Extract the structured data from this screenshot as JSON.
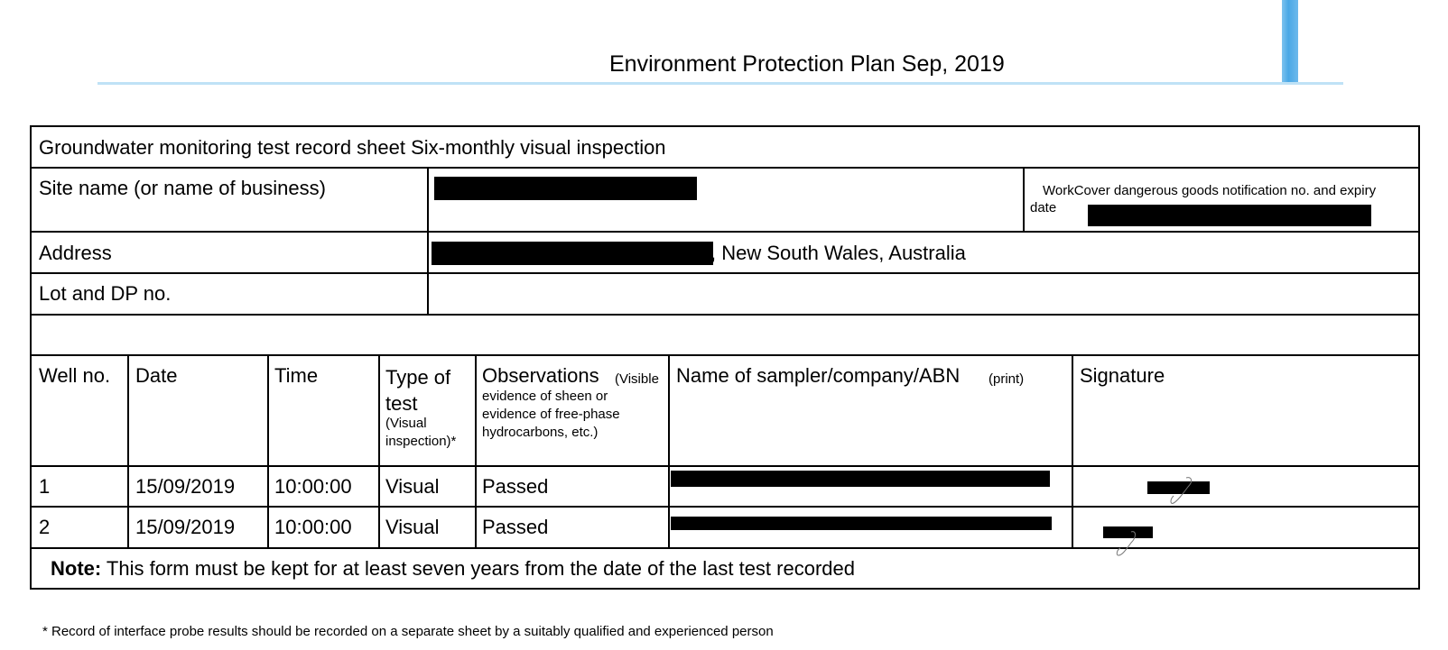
{
  "header": {
    "title": "Environment Protection Plan Sep, 2019"
  },
  "form": {
    "title": "Groundwater monitoring test record sheet Six-monthly visual inspection",
    "site_label": "Site name (or name of business)",
    "workcover_label": "WorkCover dangerous goods notification no. and expiry date",
    "address_label": "Address",
    "address_suffix": ", New South Wales, Australia",
    "lot_label": "Lot and DP no.",
    "columns": {
      "well": "Well no.",
      "date": "Date",
      "time": "Time",
      "type_main": "Type of test",
      "type_sub": "(Visual inspection)*",
      "obs_main": "Observations",
      "obs_sub_inline": "(Visible",
      "obs_sub_rest": "evidence of sheen or evidence of free-phase hydrocarbons, etc.)",
      "sampler_main": "Name of sampler/company/ABN",
      "sampler_sub": "(print)",
      "signature": "Signature"
    },
    "rows": [
      {
        "well": "1",
        "date": "15/09/2019",
        "time": "10:00:00",
        "type": "Visual",
        "observations": "Passed"
      },
      {
        "well": "2",
        "date": "15/09/2019",
        "time": "10:00:00",
        "type": "Visual",
        "observations": "Passed"
      }
    ],
    "note_label": "Note:",
    "note_text": " This form must be kept for at least seven years from the date of the last test recorded"
  },
  "footnote": "* Record of interface probe results should be recorded on a separate sheet by a suitably qualified and experienced person"
}
